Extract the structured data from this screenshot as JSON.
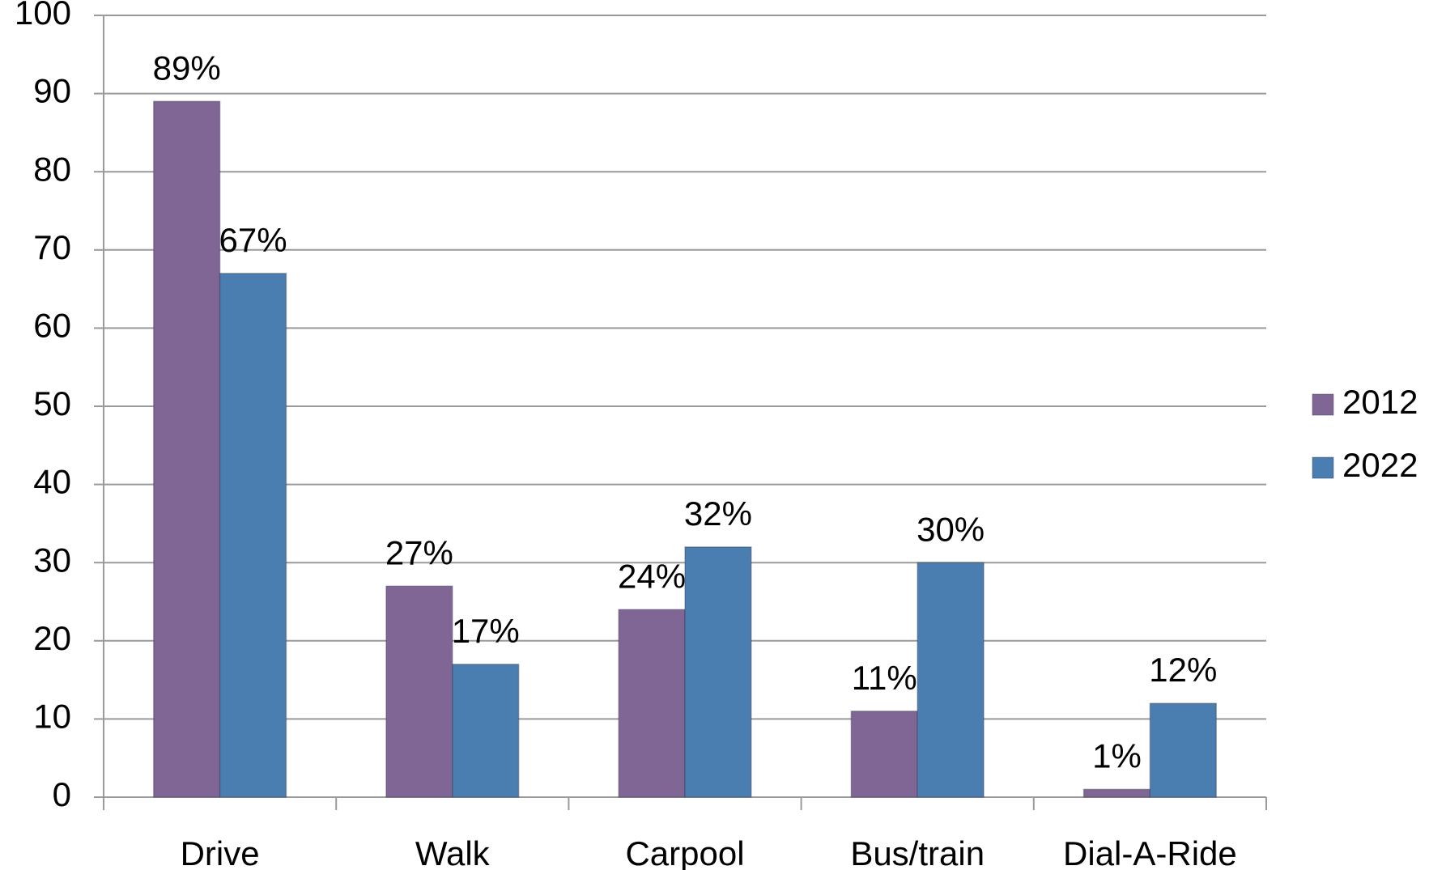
{
  "chart_data": {
    "type": "bar",
    "categories": [
      "Drive",
      "Walk",
      "Carpool",
      "Bus/train",
      "Dial-A-Ride"
    ],
    "series": [
      {
        "name": "2012",
        "color": "#7f6694",
        "values": [
          89,
          27,
          24,
          11,
          1
        ],
        "value_labels": [
          "89%",
          "27%",
          "24%",
          "11%",
          "1%"
        ]
      },
      {
        "name": "2022",
        "color": "#4a7eb0",
        "values": [
          67,
          17,
          32,
          30,
          12
        ],
        "value_labels": [
          "67%",
          "17%",
          "32%",
          "30%",
          "12%"
        ]
      }
    ],
    "ylim": [
      0,
      100
    ],
    "yticks": [
      0,
      10,
      20,
      30,
      40,
      50,
      60,
      70,
      80,
      90,
      100
    ],
    "grid": true,
    "legend": "right"
  }
}
